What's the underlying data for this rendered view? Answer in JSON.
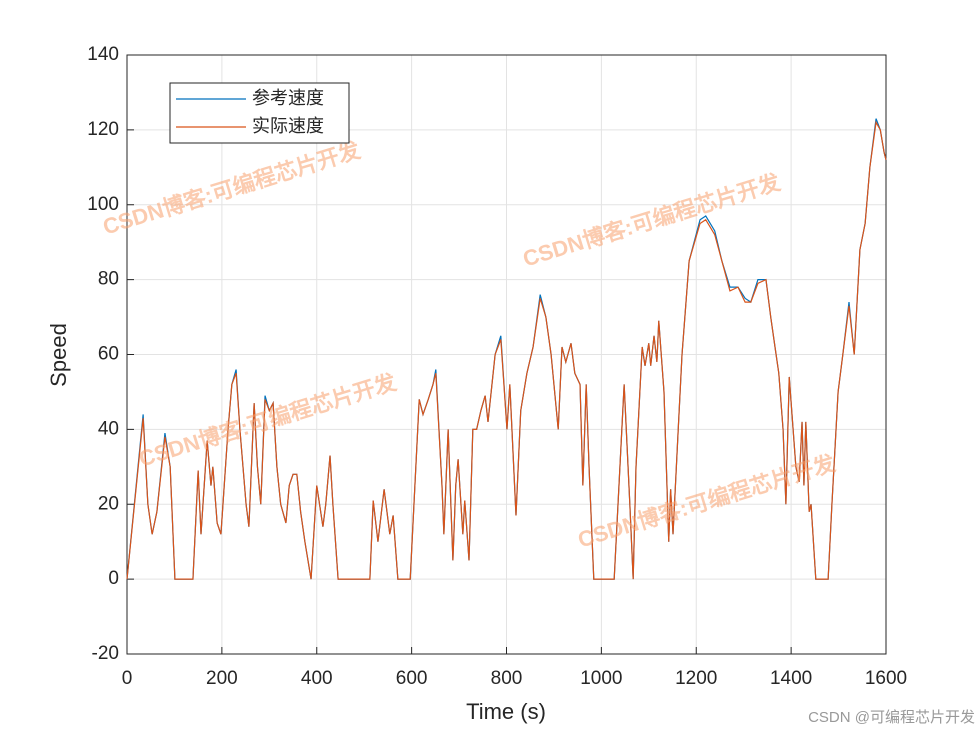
{
  "chart_data": {
    "type": "line",
    "xlabel": "Time (s)",
    "ylabel": "Speed",
    "x": [
      0,
      34,
      44,
      53,
      63,
      80,
      91,
      101,
      139,
      150,
      156,
      169,
      177,
      181,
      190,
      198,
      213,
      221,
      230,
      238,
      251,
      257,
      268,
      275,
      282,
      291,
      300,
      308,
      316,
      324,
      335,
      342,
      350,
      358,
      366,
      375,
      388,
      400,
      413,
      419,
      428,
      434,
      445,
      512,
      519,
      529,
      542,
      554,
      561,
      571,
      597,
      616,
      624,
      635,
      645,
      651,
      664,
      668,
      677,
      687,
      693,
      698,
      708,
      712,
      721,
      729,
      737,
      746,
      755,
      761,
      776,
      788,
      801,
      807,
      820,
      830,
      843,
      856,
      871,
      883,
      894,
      909,
      917,
      925,
      936,
      944,
      955,
      961,
      968,
      974,
      984,
      1027,
      1048,
      1060,
      1067,
      1073,
      1086,
      1092,
      1100,
      1104,
      1111,
      1117,
      1121,
      1132,
      1142,
      1146,
      1151,
      1162,
      1170,
      1185,
      1208,
      1220,
      1239,
      1254,
      1271,
      1288,
      1303,
      1315,
      1330,
      1347,
      1357,
      1366,
      1374,
      1383,
      1389,
      1396,
      1410,
      1417,
      1423,
      1427,
      1431,
      1438,
      1442,
      1452,
      1478,
      1486,
      1499,
      1509,
      1522,
      1533,
      1545,
      1556,
      1566,
      1579,
      1588,
      1596,
      1600
    ],
    "series": [
      {
        "name": "参考速度",
        "color": "#0072BD",
        "values": [
          0,
          44,
          20,
          12,
          18,
          39,
          30,
          0,
          0,
          29,
          12,
          37,
          25,
          30,
          15,
          12,
          40,
          52,
          56,
          40,
          20,
          14,
          47,
          30,
          20,
          49,
          45,
          47,
          30,
          20,
          15,
          25,
          28,
          28,
          18,
          10,
          0,
          25,
          14,
          20,
          33,
          20,
          0,
          0,
          21,
          10,
          24,
          12,
          17,
          0,
          0,
          48,
          44,
          48,
          52,
          56,
          25,
          12,
          40,
          5,
          25,
          32,
          12,
          21,
          5,
          40,
          40,
          45,
          49,
          42,
          60,
          65,
          40,
          52,
          17,
          45,
          55,
          62,
          76,
          70,
          60,
          40,
          62,
          58,
          63,
          55,
          52,
          25,
          52,
          30,
          0,
          0,
          52,
          20,
          0,
          30,
          62,
          57,
          63,
          57,
          65,
          58,
          69,
          50,
          10,
          24,
          12,
          40,
          60,
          85,
          96,
          97,
          93,
          85,
          78,
          78,
          75,
          74,
          80,
          80,
          70,
          62,
          55,
          40,
          20,
          54,
          30,
          26,
          42,
          25,
          42,
          18,
          20,
          0,
          0,
          20,
          50,
          60,
          74,
          60,
          88,
          95,
          110,
          123,
          120,
          114,
          112
        ]
      },
      {
        "name": "实际速度",
        "color": "#D95319",
        "values": [
          0,
          43,
          20,
          12,
          18,
          38,
          30,
          0,
          0,
          29,
          12,
          37,
          25,
          30,
          15,
          12,
          40,
          52,
          55,
          40,
          20,
          14,
          47,
          30,
          20,
          48,
          45,
          47,
          30,
          20,
          15,
          25,
          28,
          28,
          18,
          10,
          0,
          25,
          14,
          20,
          33,
          20,
          0,
          0,
          21,
          10,
          24,
          12,
          17,
          0,
          0,
          48,
          44,
          48,
          52,
          55,
          25,
          12,
          40,
          5,
          25,
          32,
          12,
          21,
          5,
          40,
          40,
          45,
          49,
          42,
          60,
          64,
          40,
          52,
          17,
          45,
          55,
          62,
          75,
          70,
          60,
          40,
          62,
          58,
          63,
          55,
          52,
          25,
          52,
          30,
          0,
          0,
          52,
          20,
          0,
          30,
          62,
          57,
          63,
          57,
          65,
          58,
          69,
          50,
          10,
          24,
          12,
          40,
          60,
          85,
          95,
          96,
          92,
          85,
          77,
          78,
          74,
          74,
          79,
          80,
          70,
          62,
          55,
          40,
          20,
          54,
          30,
          26,
          42,
          25,
          42,
          18,
          20,
          0,
          0,
          20,
          50,
          60,
          73,
          60,
          88,
          95,
          110,
          122,
          120,
          114,
          112
        ]
      }
    ],
    "xlim": [
      0,
      1600
    ],
    "xticks": [
      0,
      200,
      400,
      600,
      800,
      1000,
      1200,
      1400,
      1600
    ],
    "ylim": [
      -20,
      140
    ],
    "yticks": [
      -20,
      0,
      20,
      40,
      60,
      80,
      100,
      120,
      140
    ],
    "grid": true,
    "legend": "upper-left",
    "watermark": "CSDN博客:可编程芯片开发",
    "footer": "CSDN @可编程芯片开发"
  }
}
